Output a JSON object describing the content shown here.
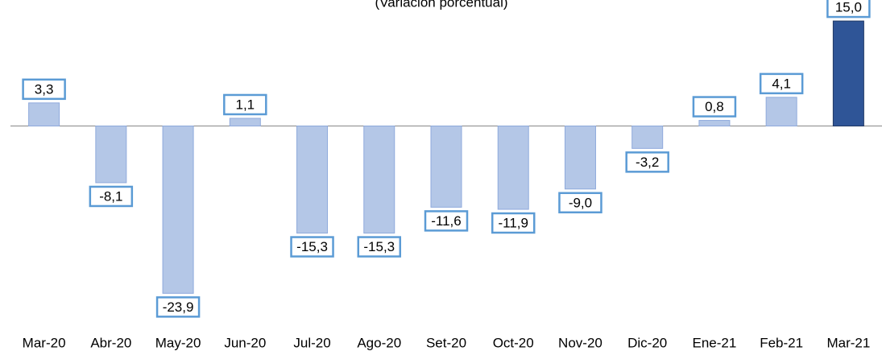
{
  "chart_data": {
    "type": "bar",
    "subtitle": "(Variación porcentual)",
    "categories": [
      "Mar-20",
      "Abr-20",
      "May-20",
      "Jun-20",
      "Jul-20",
      "Ago-20",
      "Set-20",
      "Oct-20",
      "Nov-20",
      "Dic-20",
      "Ene-21",
      "Feb-21",
      "Mar-21"
    ],
    "values": [
      3.3,
      -8.1,
      -23.9,
      1.1,
      -15.3,
      -15.3,
      -11.6,
      -11.9,
      -9.0,
      -3.2,
      0.8,
      4.1,
      15.0
    ],
    "value_labels": [
      "3,3",
      "-8,1",
      "-23,9",
      "1,1",
      "-15,3",
      "-15,3",
      "-11,6",
      "-11,9",
      "-9,0",
      "-3,2",
      "0,8",
      "4,1",
      "15,0"
    ],
    "colors": [
      "#b4c7e7",
      "#b4c7e7",
      "#b4c7e7",
      "#b4c7e7",
      "#b4c7e7",
      "#b4c7e7",
      "#b4c7e7",
      "#b4c7e7",
      "#b4c7e7",
      "#b4c7e7",
      "#b4c7e7",
      "#b4c7e7",
      "#2f5597"
    ],
    "ylim": [
      -28,
      18
    ]
  }
}
